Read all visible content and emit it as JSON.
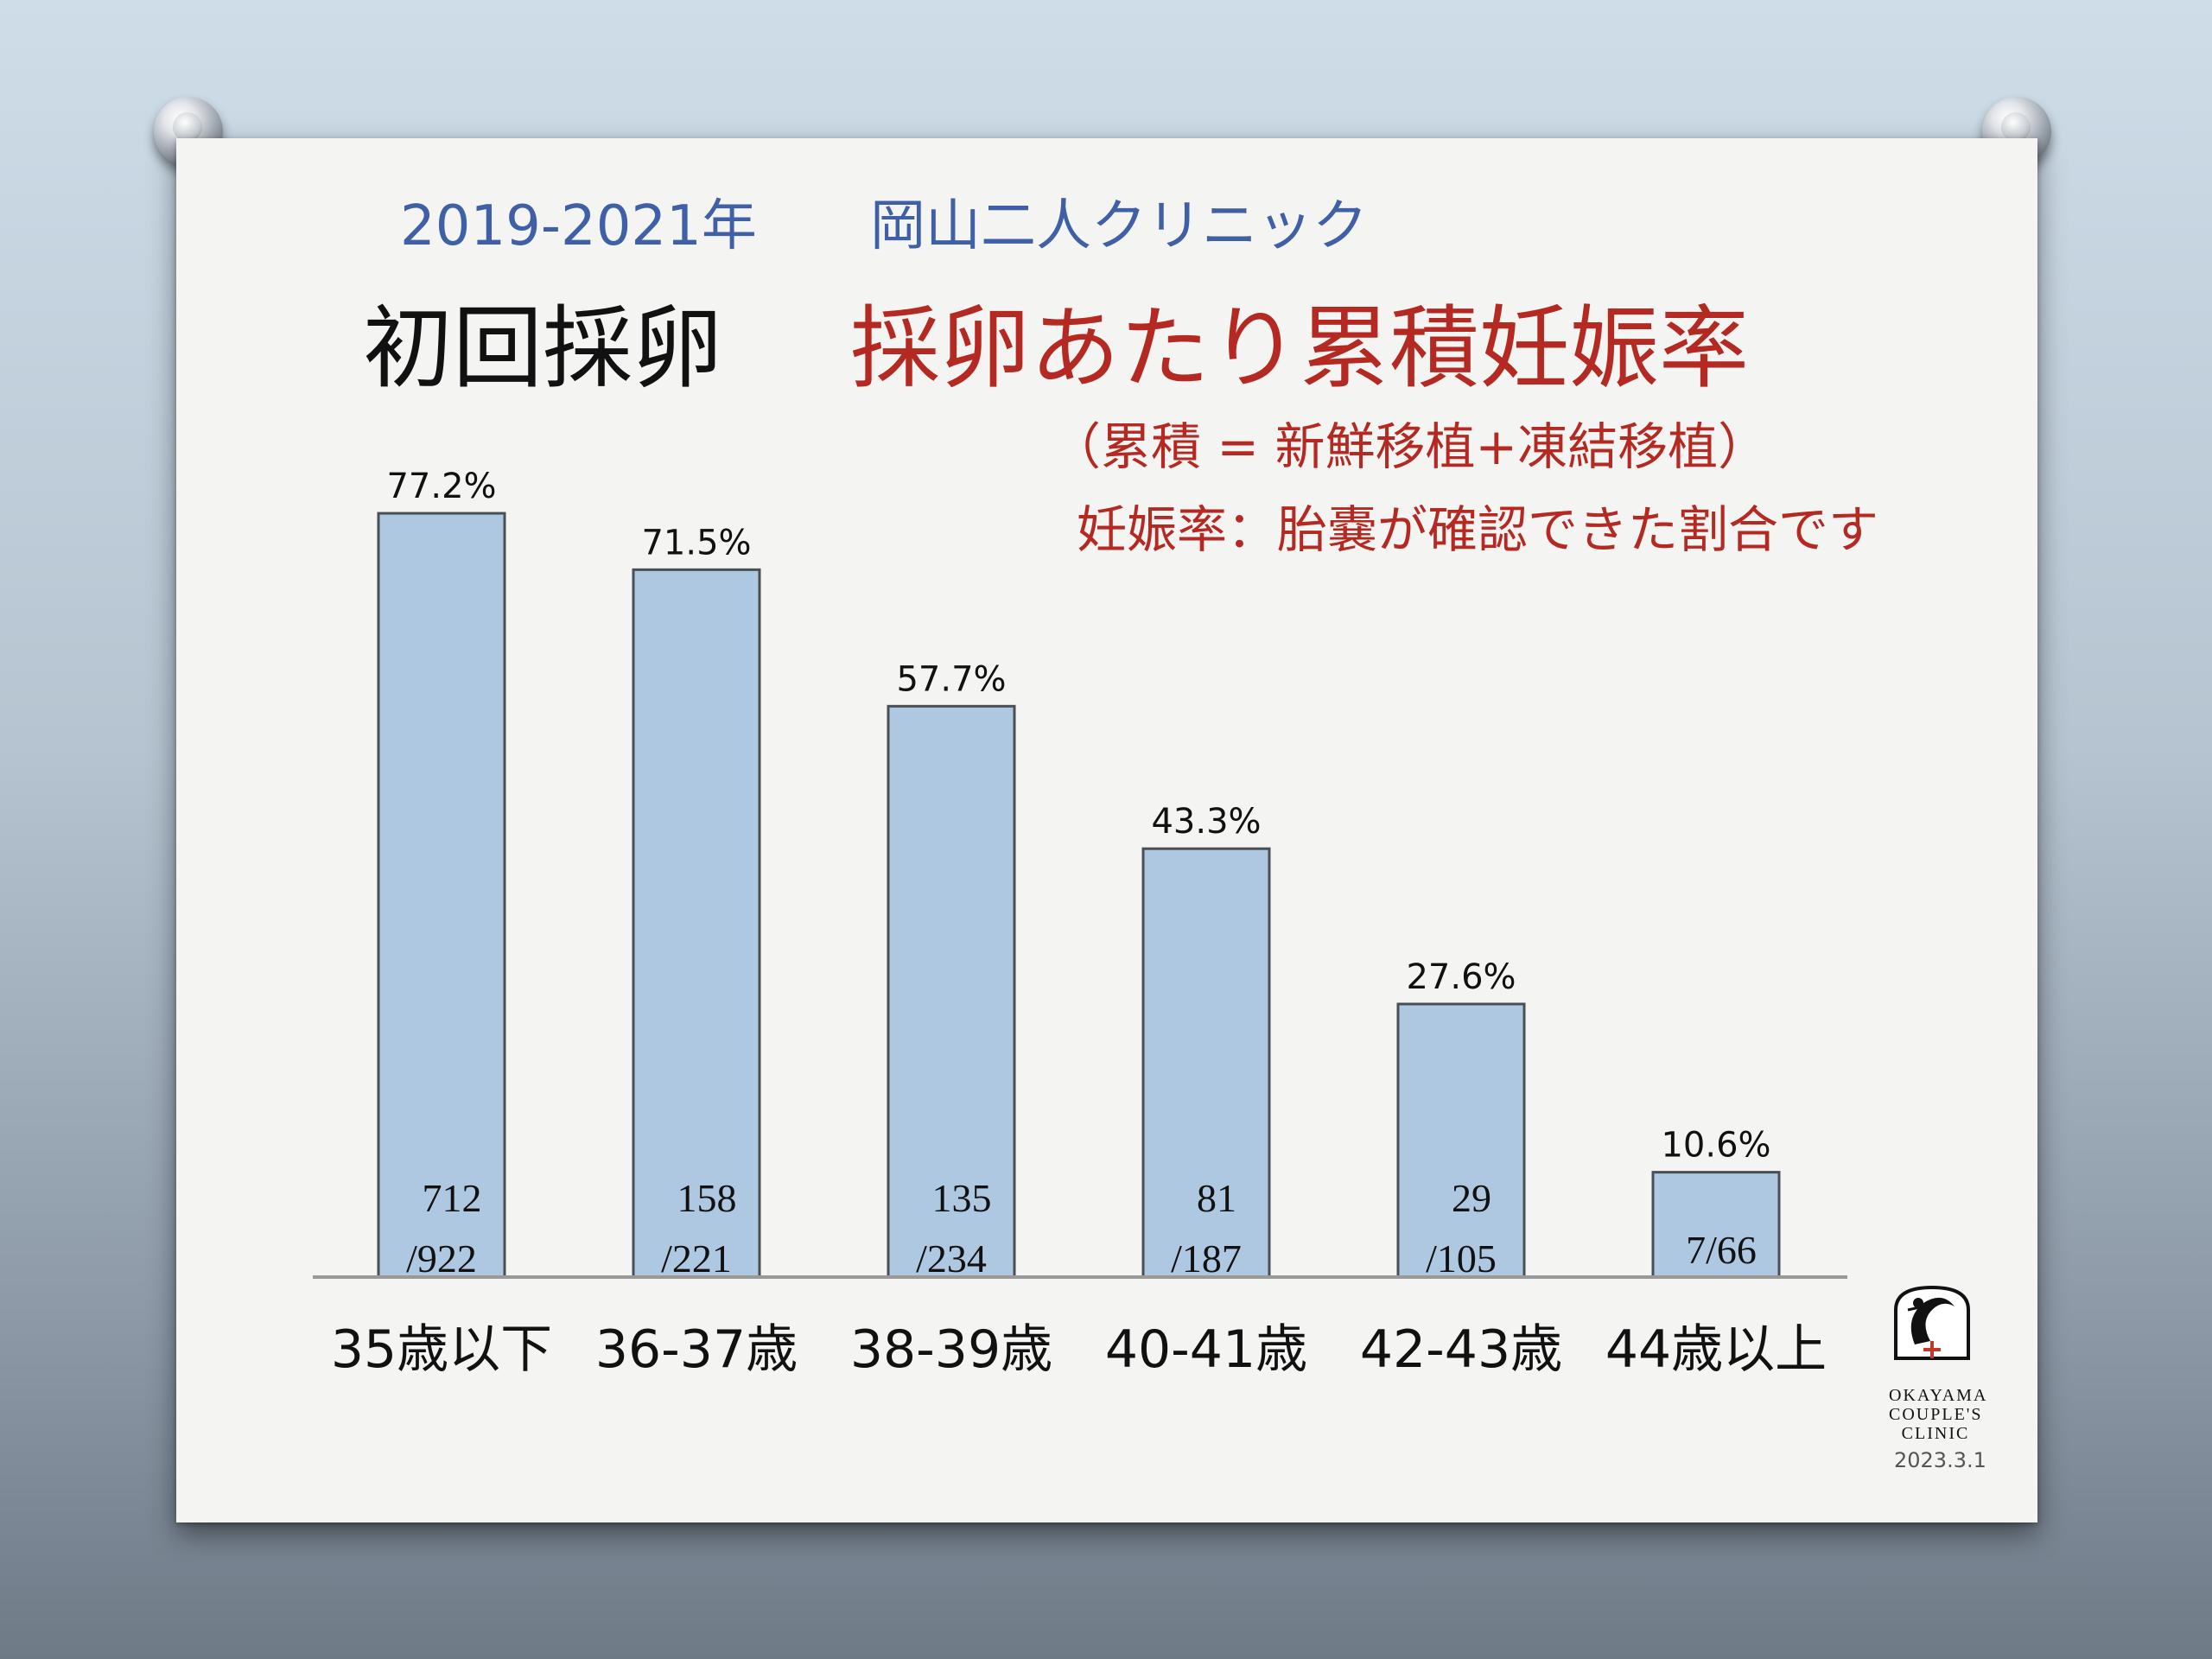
{
  "header": {
    "subtitle": "2019-2021年",
    "clinic": "岡山二人クリニック",
    "title_black": "初回採卵",
    "title_red": "採卵あたり累積妊娠率"
  },
  "notes": {
    "line1": "（累積 = 新鮮移植+凍結移植）",
    "line2": "妊娠率：胎嚢が確認できた割合です"
  },
  "colors": {
    "bar_fill": "#adc8e0",
    "bar_stroke": "#4a4f55",
    "title_red": "#b42a22",
    "header_blue": "#3f5fa6"
  },
  "chart_data": {
    "type": "bar",
    "categories": [
      "35歳以下",
      "36-37歳",
      "38-39歳",
      "40-41歳",
      "42-43歳",
      "44歳以上"
    ],
    "values": [
      77.2,
      71.5,
      57.7,
      43.3,
      27.6,
      10.6
    ],
    "value_labels": [
      "77.2%",
      "71.5%",
      "57.7%",
      "43.3%",
      "27.6%",
      "10.6%"
    ],
    "counts": [
      {
        "top": "712",
        "bottom": "/922"
      },
      {
        "top": "158",
        "bottom": "/221"
      },
      {
        "top": "135",
        "bottom": "/234"
      },
      {
        "top": "81",
        "bottom": "/187"
      },
      {
        "top": "29",
        "bottom": "/105"
      },
      {
        "top": "",
        "bottom": "7/66"
      }
    ],
    "ylim": [
      0,
      100
    ]
  },
  "logo": {
    "lines": [
      "OKAYAMA",
      "COUPLE'S",
      "CLINIC"
    ],
    "icon": "crane-logo-icon"
  },
  "date": "2023.3.1"
}
